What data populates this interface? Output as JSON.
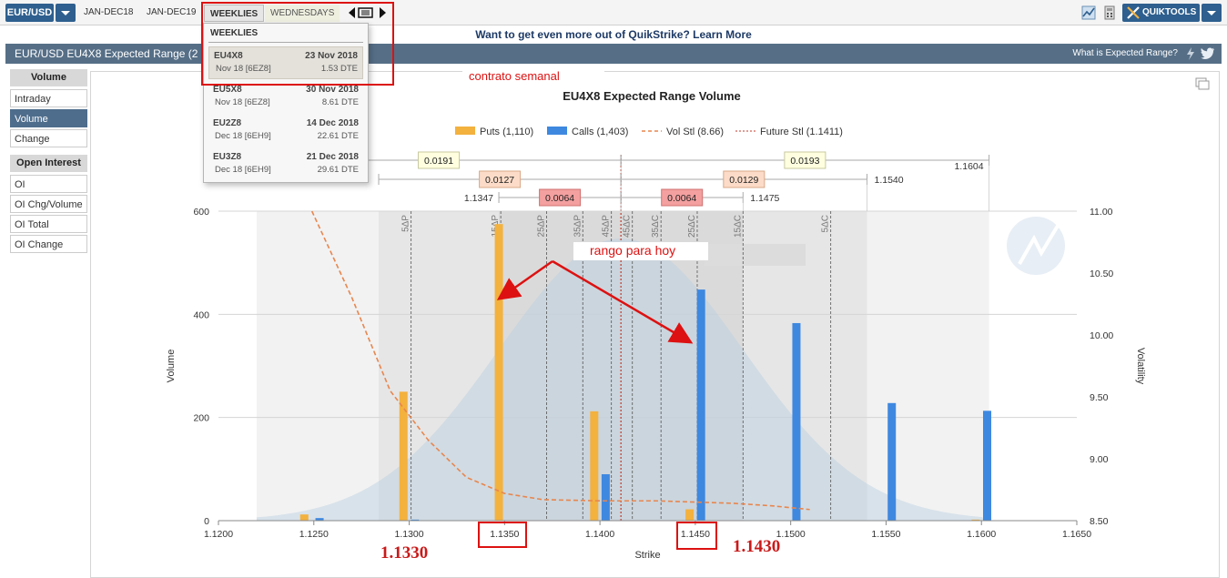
{
  "topbar": {
    "symbol": "EUR/USD",
    "tabs": [
      "JAN-DEC18",
      "JAN-DEC19"
    ],
    "weeklies": "WEEKLIES",
    "wednesdays": "WEDNESDAYS",
    "quiktools": "QUIKTOOLS"
  },
  "promo": "Want to get even more out of QuikStrike? Learn More",
  "titlebar": {
    "title": "EUR/USD EU4X8 Expected Range (2",
    "help": "What is Expected Range?"
  },
  "sidebar": {
    "volume_head": "Volume",
    "volume_items": [
      "Intraday",
      "Volume",
      "Change"
    ],
    "oi_head": "Open Interest",
    "oi_items": [
      "OI",
      "OI Chg/Volume",
      "OI Total",
      "OI Change"
    ]
  },
  "dropdown": {
    "title": "WEEKLIES",
    "rows": [
      {
        "code": "EU4X8",
        "date": "23 Nov 2018",
        "sub": "Nov 18  [6EZ8]",
        "dte": "1.53 DTE"
      },
      {
        "code": "EU5X8",
        "date": "30 Nov 2018",
        "sub": "Nov 18  [6EZ8]",
        "dte": "8.61 DTE"
      },
      {
        "code": "EU2Z8",
        "date": "14 Dec 2018",
        "sub": "Dec 18  [6EH9]",
        "dte": "22.61 DTE"
      },
      {
        "code": "EU3Z8",
        "date": "21 Dec 2018",
        "sub": "Dec 18  [6EH9]",
        "dte": "29.61 DTE"
      }
    ]
  },
  "annotations": {
    "contrato": "contrato semanal",
    "rango": "rango para hoy",
    "low": "1.1330",
    "high": "1.1430"
  },
  "colors": {
    "puts": "#f3b13e",
    "calls": "#3e88e0",
    "vol": "#e8864e",
    "future": "#c0392b",
    "accent": "#2e5f8e",
    "annotation": "#dd1111"
  },
  "chart_data": {
    "type": "bar",
    "title": "EU4X8 Expected Range Volume",
    "xlabel": "Strike",
    "ylabel": "Volume",
    "y2label": "Volatility",
    "xlim": [
      1.12,
      1.165
    ],
    "ylim": [
      0,
      600
    ],
    "y2lim": [
      8.5,
      11.0
    ],
    "xticks": [
      "1.1200",
      "1.1250",
      "1.1300",
      "1.1350",
      "1.1400",
      "1.1450",
      "1.1500",
      "1.1550",
      "1.1600",
      "1.1650"
    ],
    "yticks": [
      "0",
      "200",
      "400",
      "600"
    ],
    "y2ticks": [
      "8.50",
      "9.00",
      "9.50",
      "10.00",
      "10.50",
      "11.00"
    ],
    "legend": [
      "Puts (1,110)",
      "Calls (1,403)",
      "Vol Stl (8.66)",
      "Future Stl (1.1411)"
    ],
    "puts": [
      [
        1.1245,
        12
      ],
      [
        1.1297,
        250
      ],
      [
        1.1347,
        575
      ],
      [
        1.1397,
        212
      ],
      [
        1.1447,
        22
      ],
      [
        1.1597,
        2
      ]
    ],
    "calls": [
      [
        1.1253,
        5
      ],
      [
        1.1303,
        2
      ],
      [
        1.1403,
        90
      ],
      [
        1.1453,
        448
      ],
      [
        1.1503,
        383
      ],
      [
        1.1553,
        228
      ],
      [
        1.1603,
        213
      ]
    ],
    "vol_curve": [
      [
        1.1249,
        11.0
      ],
      [
        1.127,
        10.3
      ],
      [
        1.129,
        9.55
      ],
      [
        1.131,
        9.15
      ],
      [
        1.133,
        8.85
      ],
      [
        1.135,
        8.72
      ],
      [
        1.137,
        8.67
      ],
      [
        1.14,
        8.66
      ],
      [
        1.143,
        8.66
      ],
      [
        1.145,
        8.65
      ],
      [
        1.147,
        8.64
      ],
      [
        1.149,
        8.62
      ],
      [
        1.151,
        8.59
      ]
    ],
    "future_stl": 1.1411,
    "delta_lines": [
      {
        "label": "5ΔP",
        "x": 1.1301
      },
      {
        "label": "15ΔP",
        "x": 1.1348
      },
      {
        "label": "25ΔP",
        "x": 1.1372
      },
      {
        "label": "35ΔP",
        "x": 1.1391
      },
      {
        "label": "45ΔP",
        "x": 1.1406
      },
      {
        "label": "45ΔC",
        "x": 1.1417
      },
      {
        "label": "35ΔC",
        "x": 1.1432
      },
      {
        "label": "25ΔC",
        "x": 1.1451
      },
      {
        "label": "15ΔC",
        "x": 1.1475
      },
      {
        "label": "5ΔC",
        "x": 1.1521
      }
    ],
    "range_boxes": [
      {
        "label": "0.0191",
        "from": 1.122,
        "to": 1.1411,
        "row": 0,
        "kind": "outer"
      },
      {
        "label": "0.0193",
        "from": 1.1411,
        "to": 1.1604,
        "row": 0,
        "kind": "outer"
      },
      {
        "label": "0.0127",
        "from": 1.1284,
        "to": 1.1411,
        "row": 1,
        "kind": "mid"
      },
      {
        "label": "0.0129",
        "from": 1.1411,
        "to": 1.154,
        "row": 1,
        "kind": "mid"
      },
      {
        "label": "0.0064",
        "from": 1.1347,
        "to": 1.1411,
        "row": 2,
        "kind": "inner"
      },
      {
        "label": "0.0064",
        "from": 1.1411,
        "to": 1.1475,
        "row": 2,
        "kind": "inner"
      }
    ],
    "range_end_labels": [
      {
        "label": "1.1604",
        "x": 1.1604,
        "row": 0,
        "side": "left"
      },
      {
        "label": "1.1540",
        "x": 1.154,
        "row": 1,
        "side": "right"
      },
      {
        "label": "1.1347",
        "x": 1.1347,
        "row": 2,
        "side": "left"
      },
      {
        "label": "1.1475",
        "x": 1.1475,
        "row": 2,
        "side": "right"
      }
    ]
  }
}
